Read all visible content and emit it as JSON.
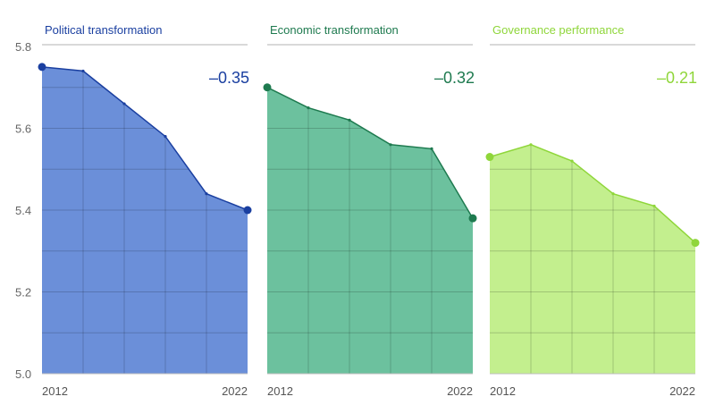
{
  "chart_data": [
    {
      "type": "area",
      "title": "Political transformation",
      "change_label": "–0.35",
      "color": "#1a3fa0",
      "fill": "#6b8fd9",
      "x": [
        2012,
        2014,
        2016,
        2018,
        2020,
        2022
      ],
      "y": [
        5.75,
        5.74,
        5.66,
        5.58,
        5.44,
        5.4
      ],
      "x_tick_labels": [
        "2012",
        "2022"
      ],
      "ylim": [
        5.0,
        5.8
      ],
      "y_ticks": [
        "5.0",
        "5.2",
        "5.4",
        "5.6",
        "5.8"
      ],
      "grid": true
    },
    {
      "type": "area",
      "title": "Economic transformation",
      "change_label": "–0.32",
      "color": "#1e7a4f",
      "fill": "#6cc19e",
      "x": [
        2012,
        2014,
        2016,
        2018,
        2020,
        2022
      ],
      "y": [
        5.7,
        5.65,
        5.62,
        5.56,
        5.55,
        5.38
      ],
      "x_tick_labels": [
        "2012",
        "2022"
      ],
      "ylim": [
        5.0,
        5.8
      ],
      "grid": true
    },
    {
      "type": "area",
      "title": "Governance performance",
      "change_label": "–0.21",
      "color": "#8fd63a",
      "fill": "#c3ef8e",
      "x": [
        2012,
        2014,
        2016,
        2018,
        2020,
        2022
      ],
      "y": [
        5.53,
        5.56,
        5.52,
        5.44,
        5.41,
        5.32
      ],
      "x_tick_labels": [
        "2012",
        "2022"
      ],
      "ylim": [
        5.0,
        5.8
      ],
      "grid": true
    }
  ]
}
